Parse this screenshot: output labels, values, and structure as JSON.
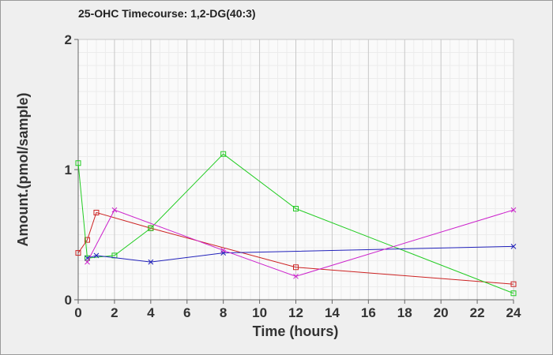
{
  "chart_data": {
    "type": "line",
    "title": "25-OHC Timecourse: 1,2-DG(40:3)",
    "xlabel": "Time (hours)",
    "ylabel": "Amount.(pmol/sample)",
    "xlim": [
      0,
      24
    ],
    "ylim": [
      0,
      2
    ],
    "xticks": [
      "0",
      "2",
      "4",
      "6",
      "8",
      "10",
      "12",
      "14",
      "16",
      "18",
      "20",
      "22",
      "24"
    ],
    "yticks": [
      "0",
      "1",
      "2"
    ],
    "grid": true,
    "series": [
      {
        "color": "#cc2222",
        "marker": "square",
        "points": [
          [
            0,
            0.36
          ],
          [
            0.5,
            0.46
          ],
          [
            1,
            0.67
          ],
          [
            4,
            0.55
          ],
          [
            12,
            0.25
          ],
          [
            24,
            0.12
          ]
        ]
      },
      {
        "color": "#22cc22",
        "marker": "square",
        "points": [
          [
            0,
            1.05
          ],
          [
            0.5,
            0.32
          ],
          [
            2,
            0.34
          ],
          [
            4,
            0.55
          ],
          [
            8,
            1.12
          ],
          [
            12,
            0.7
          ],
          [
            24,
            0.05
          ]
        ]
      },
      {
        "color": "#2222bb",
        "marker": "x",
        "points": [
          [
            0.5,
            0.32
          ],
          [
            1,
            0.34
          ],
          [
            4,
            0.29
          ],
          [
            8,
            0.36
          ],
          [
            24,
            0.41
          ]
        ]
      },
      {
        "color": "#cc22cc",
        "marker": "x",
        "points": [
          [
            0.5,
            0.29
          ],
          [
            2,
            0.69
          ],
          [
            8,
            0.38
          ],
          [
            12,
            0.18
          ],
          [
            24,
            0.69
          ]
        ]
      }
    ]
  }
}
